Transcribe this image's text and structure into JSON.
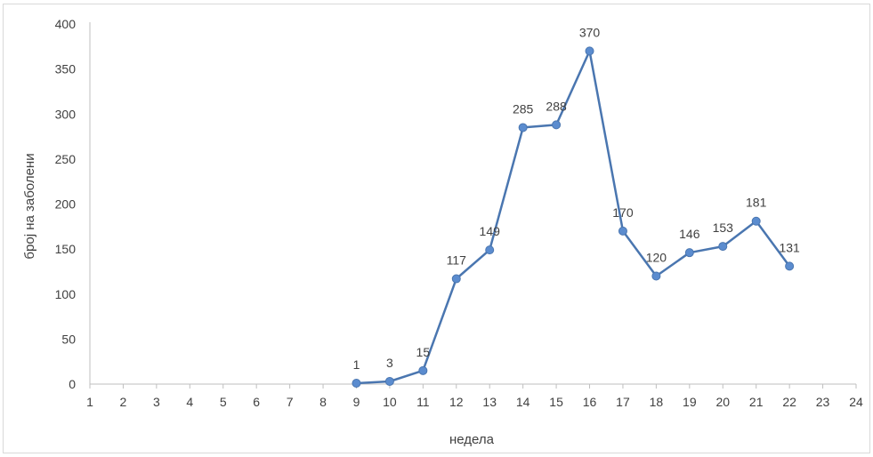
{
  "chart_data": {
    "type": "line",
    "xlabel": "недела",
    "ylabel": "број на заболени",
    "xlim": [
      1,
      24
    ],
    "ylim": [
      0,
      400
    ],
    "x_ticks": [
      "1",
      "2",
      "3",
      "4",
      "5",
      "6",
      "7",
      "8",
      "9",
      "10",
      "11",
      "12",
      "13",
      "14",
      "15",
      "16",
      "17",
      "18",
      "19",
      "20",
      "21",
      "22",
      "23",
      "24"
    ],
    "y_ticks": [
      "0",
      "50",
      "100",
      "150",
      "200",
      "250",
      "300",
      "350",
      "400"
    ],
    "grid": false,
    "series": [
      {
        "x": [
          9,
          10,
          11,
          12,
          13,
          14,
          15,
          16,
          17,
          18,
          19,
          20,
          21,
          22
        ],
        "values": [
          1,
          3,
          15,
          117,
          149,
          285,
          288,
          370,
          170,
          120,
          146,
          153,
          181,
          131
        ],
        "color": "#4a76b0",
        "marker_color": "#5b8ccf"
      }
    ]
  }
}
